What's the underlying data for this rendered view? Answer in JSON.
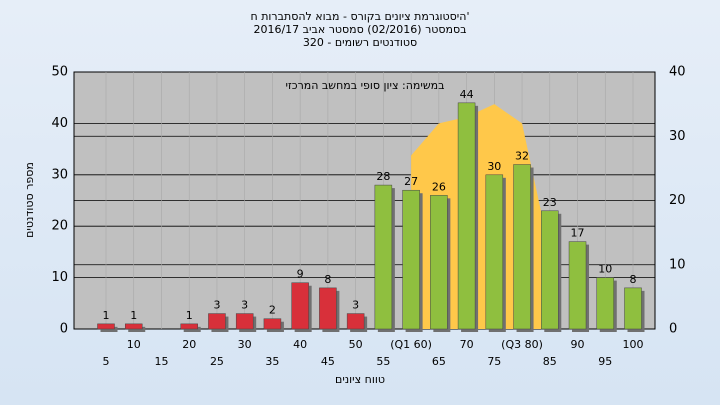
{
  "chart_data": {
    "type": "bar",
    "title": [
      "'היסטוגרמת ציונים בקורס - מבוא להסתברות ח",
      "בסמסטר  (02/2016)  סמסטר אביב 2016/17",
      "סטודנטים רשומים - 320"
    ],
    "annotation": "במשימה: ציון סופי במחשב המרכזי",
    "xlabel": "טווח ציונים",
    "ylabel": "מספר סטודנטים",
    "categories": [
      "5",
      "10",
      "15",
      "20",
      "25",
      "30",
      "35",
      "40",
      "45",
      "50",
      "55",
      "(Q1 60)",
      "65",
      "70",
      "75",
      "(Q3 80)",
      "85",
      "90",
      "95",
      "100"
    ],
    "values": [
      1,
      1,
      0,
      1,
      3,
      3,
      2,
      9,
      8,
      3,
      28,
      27,
      26,
      44,
      30,
      32,
      23,
      17,
      10,
      8
    ],
    "colors": [
      "#d8303a",
      "#d8303a",
      "#d8303a",
      "#d8303a",
      "#d8303a",
      "#d8303a",
      "#d8303a",
      "#d8303a",
      "#d8303a",
      "#d8303a",
      "#8fbf3f",
      "#8fbf3f",
      "#8fbf3f",
      "#8fbf3f",
      "#8fbf3f",
      "#8fbf3f",
      "#8fbf3f",
      "#8fbf3f",
      "#8fbf3f",
      "#8fbf3f"
    ],
    "area": {
      "axis": "y2",
      "color": "#ffc84a",
      "values": [
        null,
        null,
        null,
        null,
        null,
        null,
        null,
        null,
        null,
        null,
        null,
        27,
        32,
        33,
        35,
        32,
        12,
        null,
        null,
        null
      ]
    },
    "ylim": [
      0,
      50
    ],
    "yticks": [
      0,
      10,
      20,
      30,
      40,
      50
    ],
    "y2lim": [
      0,
      40
    ],
    "y2ticks": [
      0,
      10,
      20,
      30,
      40
    ],
    "grid": true
  }
}
